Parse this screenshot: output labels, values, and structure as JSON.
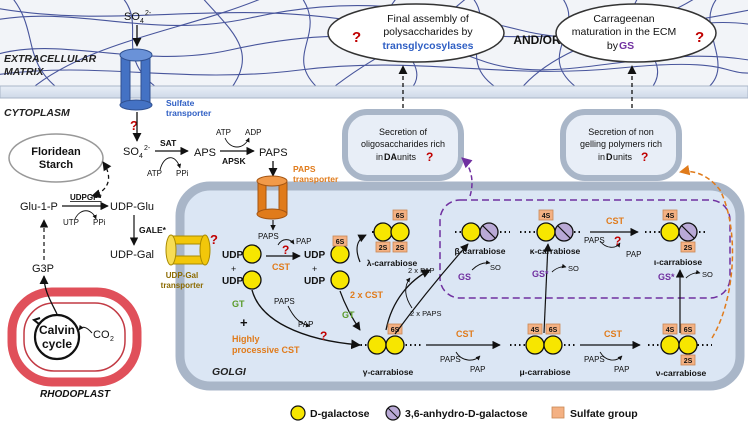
{
  "regions": {
    "extracellular": "EXTRACELLULAR MATRIX",
    "extracellular_line1": "EXTRACELLULAR",
    "extracellular_line2": "MATRIX",
    "cytoplasm": "CYTOPLASM",
    "golgi": "GOLGI",
    "rhodoplast": "RHODOPLAST"
  },
  "compartment_labels": {
    "floridean_starch_line1": "Floridean",
    "floridean_starch_line2": "Starch",
    "calvin_line1": "Calvin",
    "calvin_line2": "cycle",
    "co2": "CO",
    "co2_sub": "2"
  },
  "transporters": {
    "sulfate_line1": "Sulfate",
    "sulfate_line2": "transporter",
    "paps_line1": "PAPS",
    "paps_line2": "transporter",
    "udpgal_line1": "UDP-Gal",
    "udpgal_line2": "transporter"
  },
  "metabolites": {
    "so4_outside": "SO",
    "so4_sub": "4",
    "so4_sup": "2-",
    "so4_inside": "SO",
    "aps": "APS",
    "paps": "PAPS",
    "atp1": "ATP",
    "ppi1": "PPi",
    "atp2": "ATP",
    "adp": "ADP",
    "glu1p": "Glu-1-P",
    "udpglu": "UDP-Glu",
    "udpgal": "UDP-Gal",
    "utp": "UTP",
    "ppi2": "PPi",
    "g3p": "G3P",
    "paps_golgi": "PAPS",
    "pap_golgi": "PAP",
    "udp": "UDP",
    "plus": "+",
    "paps_gt": "PAPS",
    "pap_gt": "PAP",
    "two_x_pap": "2 x PAP",
    "two_x_paps": "2 x PAPS",
    "paps_bottom1": "PAPS",
    "pap_bottom1": "PAP",
    "paps_bottom2": "PAPS",
    "pap_bottom2": "PAP",
    "paps_top": "PAPS",
    "pap_top": "PAP",
    "so4_gs1": "SO",
    "so4_gs2": "SO",
    "so4_gs3": "SO"
  },
  "enzymes": {
    "sat": "SAT",
    "apsk": "APSK",
    "udpgp": "UDPGP*",
    "gale": "GALE*",
    "cst": "CST",
    "gt": "GT",
    "gt2": "GT",
    "two_x_cst": "2 x CST",
    "highly_line1": "Highly",
    "highly_line2": "processive CST",
    "cst_bottom1": "CST",
    "cst_bottom2": "CST",
    "cst_top": "CST",
    "gs": "GS",
    "gs_star1": "GS*",
    "gs_star2": "GS*"
  },
  "sugars": {
    "sulfate_6s": "6S",
    "sulfate_2s": "2S",
    "sulfate_4s": "4S"
  },
  "carrabioses": {
    "lambda": "λ-carrabiose",
    "beta": "β-carrabiose",
    "kappa": "κ-carrabiose",
    "iota": "ι-carrabiose",
    "gamma": "γ-carrabiose",
    "mu": "μ-carrabiose",
    "nu": "ν-carrabiose"
  },
  "ecm_boxes": {
    "final_line1": "Final assembly of",
    "final_line2": "polysaccharides by",
    "final_line3": "transglycosylases",
    "andor": "AND/OR",
    "carrageenan_line1": "Carrageenan",
    "carrageenan_line2": "maturation in the ECM",
    "carrageenan_line3_prefix": "by ",
    "carrageenan_line3_gs": "GS"
  },
  "secretion_boxes": {
    "da_line1": "Secretion of",
    "da_line2": "oligosaccharides rich",
    "da_line3_prefix": "in ",
    "da_line3_bold": "DA",
    "da_line3_suffix": " units",
    "d_line1": "Secretion of non",
    "d_line2": "gelling polymers rich",
    "d_line3_prefix": "in ",
    "d_line3_bold": "D",
    "d_line3_suffix": " units"
  },
  "question_mark": "?",
  "legend": {
    "d_galactose": "D-galactose",
    "anhydro": "3,6-anhydro-D-galactose",
    "sulfate_group": "Sulfate group"
  },
  "colors": {
    "galactose_fill": "#f7e600",
    "anhydro_fill": "#b9a9d6",
    "sulfate_fill": "#f4b183",
    "golgi_fill": "#dbe6f4",
    "golgi_stroke": "#a9b6c8",
    "rhodoplast_stroke": "#e0505a",
    "sulfate_transporter": "#4472c4",
    "paps_transporter": "#e07b1b",
    "udpgal_transporter": "#f2c70a",
    "question_red": "#c00000",
    "gs_purple": "#7030a0",
    "cst_orange": "#e07b1b",
    "gt_green": "#5b9b2a",
    "transglycosylase_blue": "#2f5fc4",
    "sulfate_label_blue": "#2f5fc4",
    "paps_label_orange": "#e07b1b",
    "udpgal_label_brown": "#8b6a00",
    "ecm_line_blue": "#2b3a8c"
  }
}
